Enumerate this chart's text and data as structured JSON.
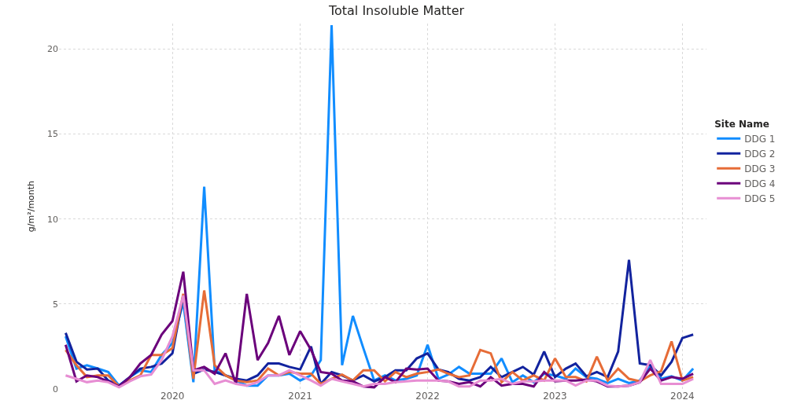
{
  "chart_data": {
    "type": "line",
    "title": "Total Insoluble Matter",
    "ylabel": "g/m²/month",
    "legend_title": "Site Name",
    "legend": "right",
    "grid": true,
    "line_style": "solid",
    "marker": "none",
    "x": [
      "2019-03",
      "2019-04",
      "2019-05",
      "2019-06",
      "2019-07",
      "2019-08",
      "2019-09",
      "2019-10",
      "2019-11",
      "2019-12",
      "2020-01",
      "2020-02",
      "2020-03",
      "2020-04",
      "2020-05",
      "2020-06",
      "2020-07",
      "2020-08",
      "2020-09",
      "2020-10",
      "2020-11",
      "2020-12",
      "2021-01",
      "2021-02",
      "2021-03",
      "2021-04",
      "2021-05",
      "2021-06",
      "2021-07",
      "2021-08",
      "2021-09",
      "2021-10",
      "2021-11",
      "2021-12",
      "2022-01",
      "2022-02",
      "2022-03",
      "2022-04",
      "2022-05",
      "2022-06",
      "2022-07",
      "2022-08",
      "2022-09",
      "2022-10",
      "2022-11",
      "2022-12",
      "2023-01",
      "2023-02",
      "2023-03",
      "2023-04",
      "2023-05",
      "2023-06",
      "2023-07",
      "2023-08",
      "2023-09",
      "2023-10",
      "2023-11",
      "2023-12",
      "2024-01",
      "2024-02"
    ],
    "xlim": [
      "2019-02-10",
      "2024-03-10"
    ],
    "xticks": [
      {
        "value": "2020",
        "label": "2020"
      },
      {
        "value": "2021",
        "label": "2021"
      },
      {
        "value": "2022",
        "label": "2022"
      },
      {
        "value": "2023",
        "label": "2023"
      },
      {
        "value": "2024",
        "label": "2024"
      }
    ],
    "ylim": [
      0,
      21.5
    ],
    "yticks": [
      0,
      5,
      10,
      15,
      20
    ],
    "series": [
      {
        "name": "DDG 1",
        "color": "#118dff",
        "values": [
          3.1,
          1.2,
          1.4,
          1.2,
          1.0,
          0.2,
          0.7,
          1.1,
          1.0,
          2.0,
          2.7,
          5.1,
          0.4,
          11.9,
          1.1,
          0.8,
          0.5,
          0.2,
          0.2,
          0.8,
          0.8,
          0.9,
          0.5,
          0.8,
          1.7,
          21.4,
          1.4,
          4.3,
          2.4,
          0.5,
          0.8,
          0.5,
          0.6,
          0.8,
          2.6,
          0.6,
          0.85,
          1.3,
          0.9,
          0.9,
          0.9,
          1.8,
          0.4,
          0.8,
          0.4,
          0.9,
          0.8,
          0.6,
          1.2,
          0.7,
          0.6,
          0.35,
          0.6,
          0.35,
          0.5,
          1.35,
          0.6,
          0.75,
          0.5,
          1.2
        ]
      },
      {
        "name": "DDG 2",
        "color": "#12239e",
        "values": [
          3.3,
          1.6,
          1.15,
          1.2,
          0.5,
          0.2,
          0.7,
          1.2,
          1.3,
          1.5,
          2.1,
          5.5,
          0.9,
          1.15,
          1.0,
          0.8,
          0.6,
          0.5,
          0.8,
          1.5,
          1.5,
          1.3,
          1.15,
          2.5,
          0.3,
          1.0,
          0.8,
          0.5,
          0.8,
          0.45,
          0.7,
          1.1,
          1.1,
          1.8,
          2.1,
          1.15,
          1.0,
          0.6,
          0.5,
          0.7,
          1.3,
          0.7,
          1.0,
          1.3,
          0.85,
          2.2,
          0.7,
          1.2,
          1.5,
          0.75,
          1.0,
          0.7,
          2.2,
          7.6,
          1.5,
          1.4,
          0.8,
          1.6,
          3.0,
          3.2
        ]
      },
      {
        "name": "DDG 3",
        "color": "#e66c37",
        "values": [
          2.3,
          1.4,
          0.7,
          0.8,
          0.8,
          0.15,
          0.5,
          0.8,
          2.0,
          2.0,
          2.4,
          5.6,
          0.6,
          5.8,
          1.4,
          0.8,
          0.5,
          0.4,
          0.5,
          1.2,
          0.8,
          1.0,
          0.9,
          0.9,
          0.3,
          0.6,
          0.85,
          0.5,
          1.1,
          1.1,
          0.45,
          1.0,
          0.7,
          0.9,
          1.0,
          1.15,
          0.9,
          0.7,
          0.8,
          2.3,
          2.1,
          0.4,
          1.0,
          0.5,
          0.8,
          0.5,
          1.8,
          0.7,
          0.7,
          0.45,
          1.9,
          0.5,
          1.2,
          0.6,
          0.45,
          0.8,
          1.05,
          2.8,
          0.5,
          0.7
        ]
      },
      {
        "name": "DDG 4",
        "color": "#6b007b",
        "values": [
          2.6,
          0.45,
          0.8,
          0.7,
          0.45,
          0.15,
          0.7,
          1.5,
          2.0,
          3.2,
          4.0,
          6.9,
          1.1,
          1.3,
          0.9,
          2.1,
          0.3,
          5.6,
          1.7,
          2.7,
          4.3,
          2.0,
          3.4,
          2.3,
          1.0,
          0.9,
          0.5,
          0.45,
          0.15,
          0.1,
          0.7,
          0.4,
          1.2,
          1.15,
          1.2,
          0.5,
          0.45,
          0.3,
          0.4,
          0.15,
          0.7,
          0.2,
          0.3,
          0.3,
          0.15,
          1.0,
          0.45,
          0.5,
          0.5,
          0.55,
          0.45,
          0.15,
          0.15,
          0.2,
          0.4,
          1.2,
          0.5,
          0.7,
          0.6,
          0.9
        ]
      },
      {
        "name": "DDG 5",
        "color": "#e78ed3",
        "values": [
          0.8,
          0.6,
          0.4,
          0.5,
          0.4,
          0.1,
          0.45,
          0.75,
          0.85,
          1.7,
          3.1,
          5.5,
          1.1,
          1.1,
          0.3,
          0.5,
          0.3,
          0.2,
          0.4,
          0.8,
          0.8,
          1.1,
          0.8,
          0.5,
          0.2,
          0.6,
          0.45,
          0.3,
          0.15,
          0.3,
          0.3,
          0.4,
          0.45,
          0.5,
          0.5,
          0.5,
          0.45,
          0.15,
          0.15,
          0.5,
          0.5,
          0.6,
          0.3,
          0.45,
          0.45,
          0.5,
          0.5,
          0.5,
          0.2,
          0.5,
          0.5,
          0.2,
          0.15,
          0.2,
          0.4,
          1.7,
          0.3,
          0.3,
          0.3,
          0.6
        ]
      }
    ]
  }
}
